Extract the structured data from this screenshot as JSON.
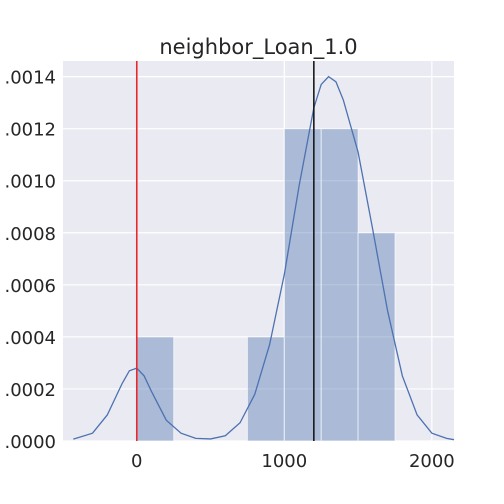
{
  "chart_data": {
    "type": "bar",
    "title": "neighbor_Loan_1.0",
    "xlabel": "",
    "ylabel": "",
    "xlim": [
      -500,
      2150
    ],
    "ylim": [
      0,
      0.00146
    ],
    "x_ticks": [
      0,
      1000,
      2000
    ],
    "x_tick_labels": [
      "0",
      "1000",
      "2000"
    ],
    "y_ticks": [
      0.0,
      0.0002,
      0.0004,
      0.0006,
      0.0008,
      0.001,
      0.0012,
      0.0014
    ],
    "y_tick_labels": [
      ".0000",
      ".0002",
      ".0004",
      ".0006",
      ".0008",
      ".0010",
      ".0012",
      ".0014"
    ],
    "grid": true,
    "bins": [
      {
        "x0": 0,
        "x1": 250,
        "density": 0.0004
      },
      {
        "x0": 250,
        "x1": 500,
        "density": 0.0
      },
      {
        "x0": 500,
        "x1": 750,
        "density": 0.0
      },
      {
        "x0": 750,
        "x1": 1000,
        "density": 0.0004
      },
      {
        "x0": 1000,
        "x1": 1250,
        "density": 0.0012
      },
      {
        "x0": 1250,
        "x1": 1500,
        "density": 0.0012
      },
      {
        "x0": 1500,
        "x1": 1750,
        "density": 0.0008
      }
    ],
    "kde": {
      "x": [
        -430,
        -300,
        -200,
        -100,
        -50,
        0,
        50,
        100,
        200,
        300,
        400,
        500,
        600,
        700,
        800,
        900,
        1000,
        1100,
        1200,
        1250,
        1300,
        1350,
        1400,
        1500,
        1600,
        1700,
        1800,
        1900,
        2000,
        2100,
        2150
      ],
      "y": [
        7e-06,
        3e-05,
        0.0001,
        0.00022,
        0.00027,
        0.00028,
        0.00025,
        0.00019,
        8e-05,
        3e-05,
        1e-05,
        8e-06,
        2e-05,
        7e-05,
        0.00018,
        0.00037,
        0.00064,
        0.00098,
        0.00128,
        0.00137,
        0.0014,
        0.00138,
        0.00131,
        0.00111,
        0.00081,
        0.0005,
        0.00025,
        0.0001,
        3e-05,
        1e-05,
        5e-06
      ]
    },
    "vlines": [
      {
        "x": 0,
        "color": "#e8282b"
      },
      {
        "x": 1200,
        "color": "#1a1a1a"
      }
    ],
    "colors": {
      "bar": "#4c72b0",
      "bar_opacity": 0.4,
      "kde": "#4c72b0",
      "background": "#eaeaf2",
      "grid": "#ffffff"
    }
  }
}
